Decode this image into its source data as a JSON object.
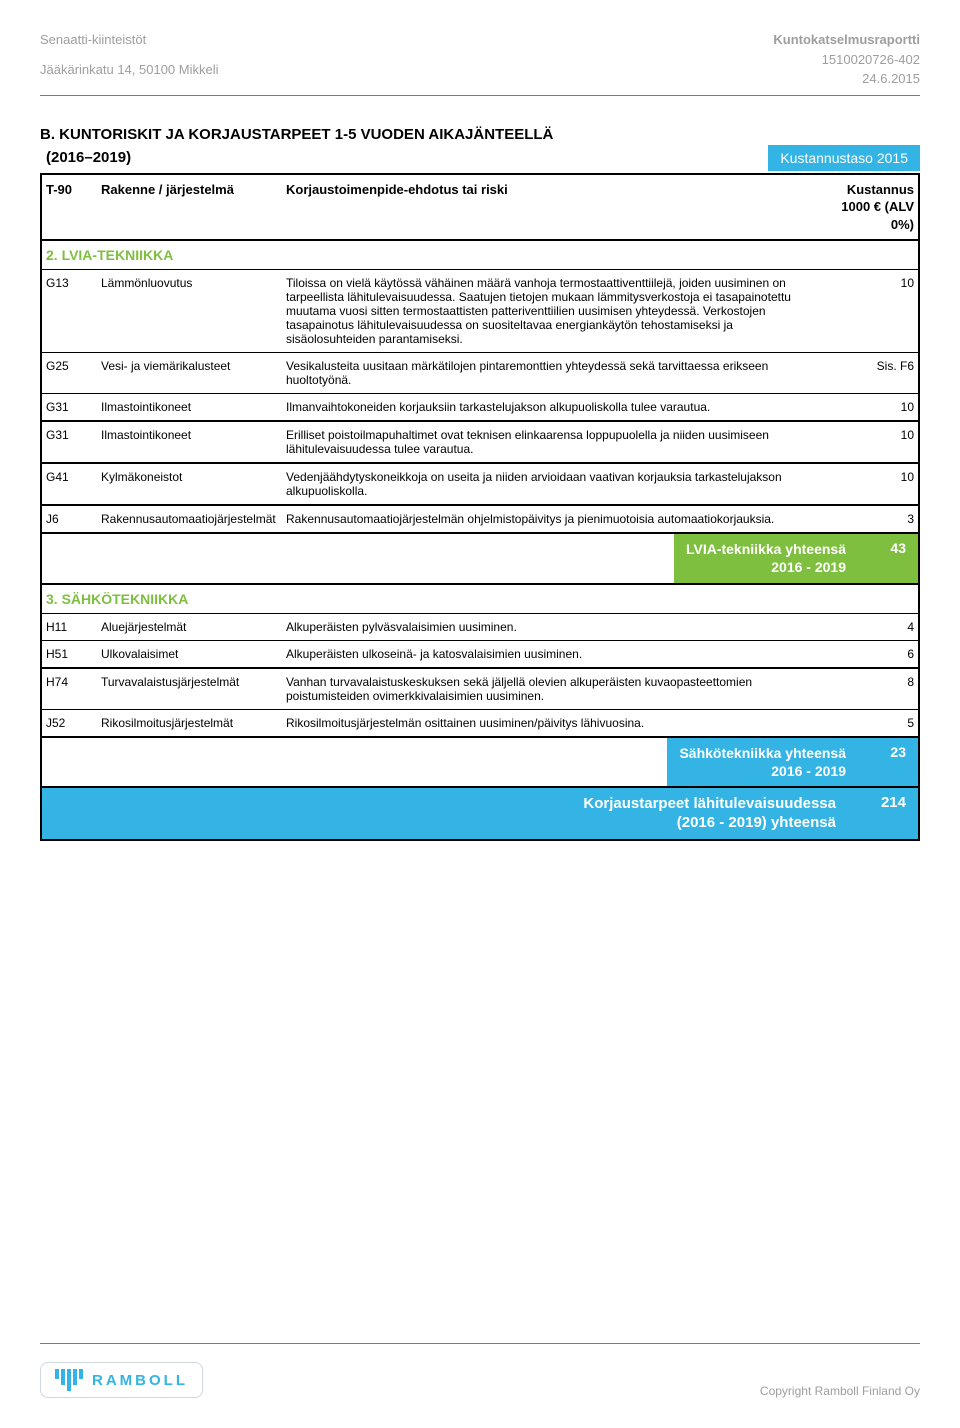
{
  "header": {
    "left1": "Senaatti-kiinteistöt",
    "left2": "Jääkärinkatu 14,  50100 Mikkeli",
    "right1": "Kuntokatselmusraportti",
    "right2": "1510020726-402",
    "right3": "24.6.2015"
  },
  "title": {
    "line1": "B. KUNTORISKIT JA KORJAUSTARPEET 1-5 VUODEN AIKAJÄNTEELLÄ",
    "line2_left": "(2016–2019)",
    "line2_right": "Kustannustaso 2015"
  },
  "colors": {
    "green": "#7fbf3f",
    "blue": "#34b4e4",
    "greyText": "#9e9e9e"
  },
  "table_header": {
    "code": "T-90",
    "name": "Rakenne / järjestelmä",
    "desc": "Korjaustoimenpide-ehdotus tai riski",
    "cost_l1": "Kustannus",
    "cost_l2": "1000 € (ALV",
    "cost_l3": "0%)"
  },
  "section2": {
    "title": "2. LVIA-TEKNIIKKA",
    "rows": [
      {
        "code": "G13",
        "name": "Lämmönluovutus",
        "desc": "Tiloissa on vielä käytössä vähäinen määrä vanhoja termostaattiventtiilejä, joiden uusiminen on tarpeellista lähitulevaisuudessa. Saatujen tietojen mukaan lämmitysverkostoja ei tasapainotettu muutama vuosi sitten termostaattisten patteriventtiilien uusimisen yhteydessä. Verkostojen tasapainotus lähitulevaisuudessa on suositeltavaa energiankäytön tehostamiseksi ja sisäolosuhteiden parantamiseksi.",
        "cost": "10"
      },
      {
        "code": "G25",
        "name": "Vesi- ja viemärikalusteet",
        "desc": "Vesikalusteita uusitaan märkätilojen pintaremonttien yhteydessä sekä tarvittaessa erikseen huoltotyönä.",
        "cost": "Sis. F6"
      },
      {
        "code": "G31",
        "name": "Ilmastointikoneet",
        "desc": "Ilmanvaihtokoneiden korjauksiin tarkastelujakson alkupuoliskolla tulee varautua.",
        "cost": "10"
      },
      {
        "code": "G31",
        "name": "Ilmastointikoneet",
        "desc": "Erilliset poistoilmapuhaltimet ovat teknisen elinkaarensa loppupuolella ja niiden uusimiseen lähitulevaisuudessa tulee varautua.",
        "cost": "10",
        "border": "thick"
      },
      {
        "code": "G41",
        "name": "Kylmäkoneistot",
        "desc": "Vedenjäähdytyskoneikkoja on useita ja niiden arvioidaan vaativan korjauksia tarkastelujakson alkupuoliskolla.",
        "cost": "10",
        "border": "thick"
      },
      {
        "code": "J6",
        "name": "Rakennusautomaatiojärjestelmät",
        "desc": "Rakennusautomaatiojärjestelmän ohjelmistopäivitys ja pienimuotoisia automaatiokorjauksia.",
        "cost": "3",
        "border": "thick"
      }
    ],
    "subtotal_label": "LVIA-tekniikka yhteensä\n2016 - 2019",
    "subtotal_value": "43"
  },
  "section3": {
    "title": "3. SÄHKÖTEKNIIKKA",
    "rows": [
      {
        "code": "H11",
        "name": "Aluejärjestelmät",
        "desc": "Alkuperäisten pylväsvalaisimien uusiminen.",
        "cost": "4"
      },
      {
        "code": "H51",
        "name": "Ulkovalaisimet",
        "desc": "Alkuperäisten ulkoseinä- ja katosvalaisimien uusiminen.",
        "cost": "6"
      },
      {
        "code": "H74",
        "name": "Turvavalaistusjärjestelmät",
        "desc": "Vanhan turvavalaistuskeskuksen sekä jäljellä olevien alkuperäisten kuvaopasteettomien poistumisteiden ovimerkkivalaisimien uusiminen.",
        "cost": "8",
        "border": "thick"
      },
      {
        "code": "J52",
        "name": "Rikosilmoitusjärjestelmät",
        "desc": "Rikosilmoitusjärjestelmän osittainen uusiminen/päivitys lähivuosina.",
        "cost": "5"
      }
    ],
    "subtotal_label": "Sähkötekniikka yhteensä\n2016 - 2019",
    "subtotal_value": "23"
  },
  "grand": {
    "label": "Korjaustarpeet lähitulevaisuudessa\n(2016 - 2019) yhteensä",
    "value": "214"
  },
  "footer": {
    "logo_text": "RAMBOLL",
    "copyright": "Copyright Ramboll Finland Oy"
  }
}
